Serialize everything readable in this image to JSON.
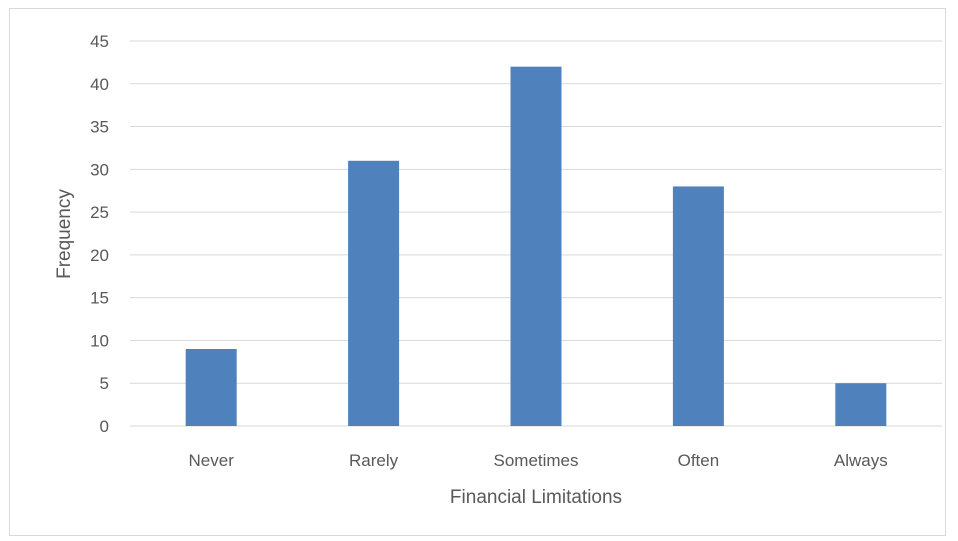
{
  "chart_data": {
    "type": "bar",
    "title": "",
    "xlabel": "Financial Limitations",
    "ylabel": "Frequency",
    "categories": [
      "Never",
      "Rarely",
      "Sometimes",
      "Often",
      "Always"
    ],
    "values": [
      9,
      31,
      42,
      28,
      5
    ],
    "ylim": [
      0,
      45
    ],
    "yticks": [
      0,
      5,
      10,
      15,
      20,
      25,
      30,
      35,
      40,
      45
    ],
    "grid": true,
    "legend": "none",
    "bar_color": "#4f81bd",
    "grid_color": "#d9d9d9",
    "text_color": "#595959"
  }
}
